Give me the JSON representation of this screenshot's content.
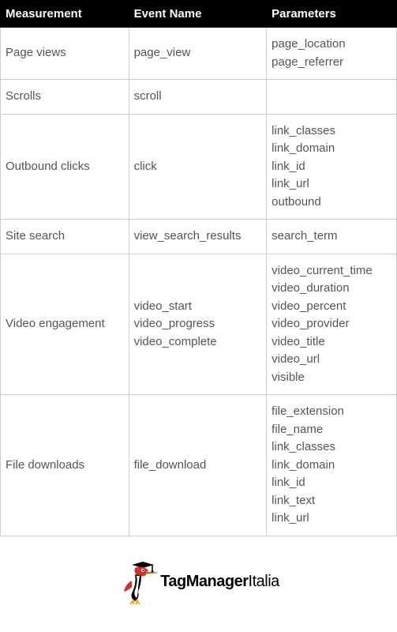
{
  "table": {
    "header_bg": "#000000",
    "header_color": "#ffffff",
    "border_color": "#cccccc",
    "cell_text_color": "#555555",
    "font_family": "Arial",
    "columns": [
      "Measurement",
      "Event Name",
      "Parameters"
    ],
    "rows": [
      {
        "measurement": "Page views",
        "event_names": [
          "page_view"
        ],
        "parameters": [
          "page_location",
          "page_referrer"
        ]
      },
      {
        "measurement": "Scrolls",
        "event_names": [
          "scroll"
        ],
        "parameters": []
      },
      {
        "measurement": "Outbound clicks",
        "event_names": [
          "click"
        ],
        "parameters": [
          "link_classes",
          "link_domain",
          "link_id",
          "link_url",
          "outbound"
        ]
      },
      {
        "measurement": "Site search",
        "event_names": [
          "view_search_results"
        ],
        "parameters": [
          "search_term"
        ]
      },
      {
        "measurement": "Video engagement",
        "event_names": [
          "video_start",
          "video_progress",
          "video_complete"
        ],
        "parameters": [
          "video_current_time",
          "video_duration",
          "video_percent",
          "video_provider",
          "video_title",
          "video_url",
          "visible"
        ]
      },
      {
        "measurement": "File downloads",
        "event_names": [
          "file_download"
        ],
        "parameters": [
          "file_extension",
          "file_name",
          "link_classes",
          "link_domain",
          "link_id",
          "link_text",
          "link_url"
        ]
      }
    ]
  },
  "logo": {
    "brand_strong": "TagManager",
    "brand_light": "Italia",
    "bird_body_color": "#d32f2f",
    "bird_accent_color": "#000000",
    "bird_beak_color": "#f9a825"
  }
}
